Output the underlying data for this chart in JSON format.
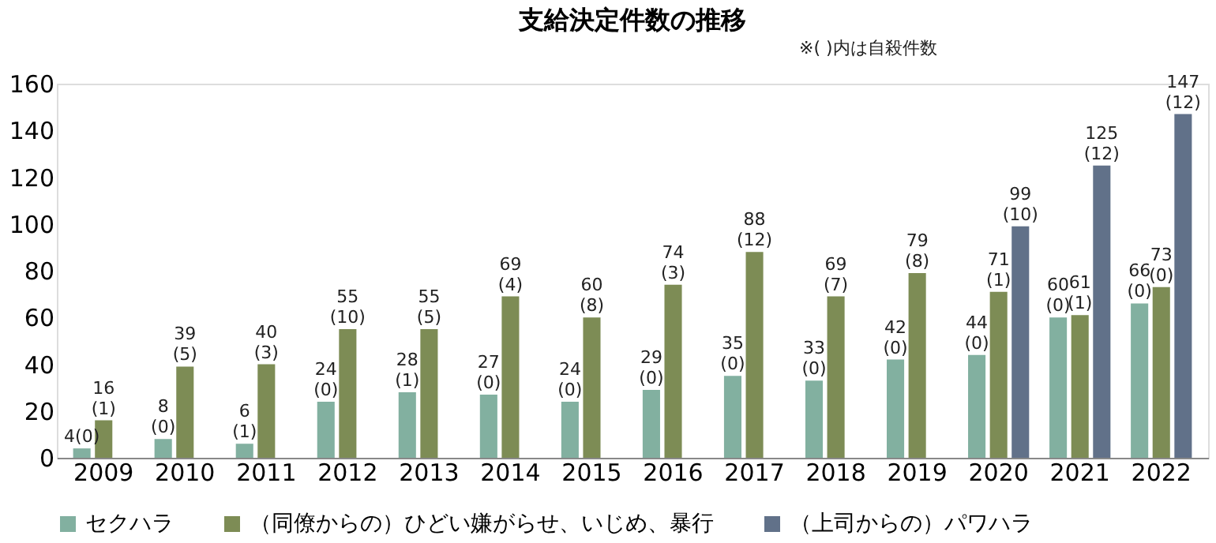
{
  "chart_data": {
    "type": "bar",
    "title": "支給決定件数の推移",
    "annotations": [
      "※( )内は自殺件数"
    ],
    "categories": [
      "2009",
      "2010",
      "2011",
      "2012",
      "2013",
      "2014",
      "2015",
      "2016",
      "2017",
      "2018",
      "2019",
      "2020",
      "2021",
      "2022"
    ],
    "series": [
      {
        "name": "セクハラ",
        "color": "#82b0a0",
        "values": [
          4,
          8,
          6,
          24,
          28,
          27,
          24,
          29,
          35,
          33,
          42,
          44,
          60,
          66
        ],
        "value_labels": [
          "4(0)",
          "8\n(0)",
          "6\n(1)",
          "24\n(0)",
          "28\n(1)",
          "27\n(0)",
          "24\n(0)",
          "29\n(0)",
          "35\n(0)",
          "33\n(0)",
          "42\n(0)",
          "44\n(0)",
          "60\n(0)",
          "66\n(0)"
        ]
      },
      {
        "name": "（同僚からの）ひどい嫌がらせ、いじめ、暴行",
        "color": "#7d8c55",
        "values": [
          16,
          39,
          40,
          55,
          55,
          69,
          60,
          74,
          88,
          69,
          79,
          71,
          61,
          73
        ],
        "value_labels": [
          "16\n(1)",
          "39\n(5)",
          "40\n(3)",
          "55\n(10)",
          "55\n(5)",
          "69\n(4)",
          "60\n(8)",
          "74\n(3)",
          "88\n(12)",
          "69\n(7)",
          "79\n(8)",
          "71\n(1)",
          "61\n(1)",
          "73\n(0)"
        ]
      },
      {
        "name": "（上司からの）パワハラ",
        "color": "#617189",
        "values": [
          null,
          null,
          null,
          null,
          null,
          null,
          null,
          null,
          null,
          null,
          null,
          99,
          125,
          147
        ],
        "value_labels": [
          null,
          null,
          null,
          null,
          null,
          null,
          null,
          null,
          null,
          null,
          null,
          "99\n(10)",
          "125\n(12)",
          "147\n(12)"
        ]
      }
    ],
    "ylim": [
      0,
      160
    ],
    "yticks": [
      0,
      20,
      40,
      60,
      80,
      100,
      120,
      140,
      160
    ],
    "grid": false,
    "legend": "bottom"
  }
}
